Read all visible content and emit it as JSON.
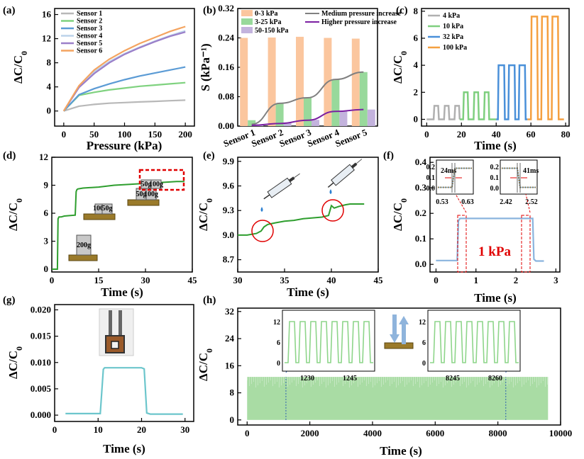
{
  "figure": {
    "panel_labels": [
      "(a)",
      "(b)",
      "(c)",
      "(d)",
      "(e)",
      "(f)",
      "(g)",
      "(h)"
    ]
  },
  "chart_data": [
    {
      "id": "a",
      "type": "line",
      "xlabel": "Pressure (kPa)",
      "ylabel": "ΔC/C0",
      "xlim": [
        -15,
        215
      ],
      "ylim": [
        -2.5,
        17
      ],
      "xticks": [
        0,
        50,
        100,
        150,
        200
      ],
      "yticks": [
        0,
        4,
        8,
        12,
        16
      ],
      "x": [
        0,
        25,
        50,
        75,
        100,
        125,
        150,
        175,
        200
      ],
      "series": [
        {
          "name": "Sensor 1",
          "color": "#b8b8b8",
          "values": [
            0,
            0.8,
            1.1,
            1.3,
            1.4,
            1.5,
            1.6,
            1.7,
            1.8
          ]
        },
        {
          "name": "Sensor 2",
          "color": "#7fd27f",
          "values": [
            0,
            2.6,
            3.1,
            3.5,
            3.8,
            4.1,
            4.3,
            4.5,
            4.7
          ]
        },
        {
          "name": "Sensor 3",
          "color": "#5b9bd5",
          "values": [
            0,
            2.7,
            3.7,
            4.5,
            5.2,
            5.8,
            6.3,
            6.8,
            7.3
          ]
        },
        {
          "name": "Sensor 4",
          "color": "#bcd3ea",
          "values": [
            0,
            4.0,
            6.5,
            8.2,
            9.5,
            10.6,
            11.6,
            12.5,
            13.3
          ]
        },
        {
          "name": "Sensor 5",
          "color": "#9b7fc9",
          "values": [
            0,
            3.9,
            6.2,
            8.0,
            9.4,
            10.5,
            11.5,
            12.4,
            13.1
          ]
        },
        {
          "name": "Sensor 6",
          "color": "#f4a460",
          "values": [
            0,
            4.2,
            6.8,
            8.6,
            10.0,
            11.2,
            12.2,
            13.2,
            14.0
          ]
        }
      ]
    },
    {
      "id": "b",
      "type": "bar",
      "ylabel": "S (kPa⁻¹)",
      "categories": [
        "Sensor 1",
        "Sensor 2",
        "Sensor 3",
        "Sensor 4",
        "Sensor 5"
      ],
      "ylim": [
        0,
        0.32
      ],
      "yticks": [
        "0.00",
        "0.08",
        "0.16",
        "0.24",
        "0.32"
      ],
      "series": [
        {
          "name": "0-3 kPa",
          "color": "#fbc69e",
          "values": [
            0.24,
            0.241,
            0.243,
            0.24,
            0.238
          ]
        },
        {
          "name": "3-25 kPa",
          "color": "#98d99b",
          "values": [
            0.016,
            0.062,
            0.077,
            0.127,
            0.147
          ]
        },
        {
          "name": "50-150 kPa",
          "color": "#c3b3dd",
          "values": [
            0.005,
            0.01,
            0.017,
            0.04,
            0.045
          ]
        }
      ],
      "lines": [
        {
          "name": "Medium pressure increase",
          "color": "#808080",
          "values": [
            0.005,
            0.062,
            0.077,
            0.127,
            0.147
          ]
        },
        {
          "name": "Higher pressure increase",
          "color": "#7b1fa2",
          "values": [
            0.002,
            0.007,
            0.016,
            0.04,
            0.045
          ]
        }
      ]
    },
    {
      "id": "c",
      "type": "line",
      "xlabel": "Time (s)",
      "ylabel": "ΔC/C0",
      "xlim": [
        -3,
        82
      ],
      "ylim": [
        -0.5,
        8.2
      ],
      "xticks": [
        0,
        20,
        40,
        60,
        80
      ],
      "yticks": [
        0,
        2,
        4,
        6,
        8
      ],
      "series": [
        {
          "name": "4 kPa",
          "color": "#b0b0b0",
          "level": 1.0,
          "start": 4,
          "period": 6,
          "on": 3,
          "cycles": 3
        },
        {
          "name": "10 kPa",
          "color": "#7fcf7f",
          "level": 2.0,
          "start": 21,
          "period": 6,
          "on": 3,
          "cycles": 3
        },
        {
          "name": "32 kPa",
          "color": "#4a90d9",
          "level": 4.0,
          "start": 41,
          "period": 6,
          "on": 4,
          "cycles": 3
        },
        {
          "name": "100 kPa",
          "color": "#f5a040",
          "level": 7.6,
          "start": 60,
          "period": 6,
          "on": 4,
          "cycles": 3
        }
      ]
    },
    {
      "id": "d",
      "type": "line",
      "xlabel": "Time (s)",
      "ylabel": "ΔC/C0",
      "xlim": [
        0,
        45
      ],
      "ylim": [
        -0.3,
        12
      ],
      "xticks": [
        0,
        15,
        30,
        45
      ],
      "yticks": [
        0,
        3,
        6,
        9,
        12
      ],
      "image_labels": [
        "100g",
        "50g",
        "50g",
        "100g",
        "50g",
        "100g",
        "100g",
        "200g"
      ],
      "series": [
        {
          "name": "",
          "color": "#2e9e2e",
          "x": [
            0,
            1.8,
            2.0,
            2.3,
            3.0,
            4.0,
            6.0,
            7.5,
            7.8,
            8.0,
            8.3,
            10,
            15,
            20,
            25,
            30,
            35,
            40,
            42.5
          ],
          "y": [
            0,
            0,
            5.4,
            5.6,
            5.6,
            5.7,
            5.75,
            5.8,
            8.3,
            8.5,
            8.6,
            8.7,
            8.8,
            9.0,
            9.1,
            9.2,
            9.3,
            9.4,
            9.4
          ]
        }
      ]
    },
    {
      "id": "e",
      "type": "line",
      "xlabel": "Time (s)",
      "ylabel": "ΔC/C0",
      "xlim": [
        30,
        45
      ],
      "ylim": [
        8.55,
        9.95
      ],
      "xticks": [
        30,
        35,
        40,
        45
      ],
      "yticks": [
        "8.7",
        "9.0",
        "9.3",
        "9.6",
        "9.9"
      ],
      "series": [
        {
          "name": "",
          "color": "#2e9e2e",
          "x": [
            30,
            31,
            32,
            32.5,
            32.8,
            33.2,
            34,
            35,
            36,
            37,
            38,
            39,
            39.7,
            40.0,
            40.3,
            40.8,
            41.5,
            42,
            43,
            43.5
          ],
          "y": [
            9.0,
            9.0,
            9.02,
            9.05,
            9.1,
            9.13,
            9.15,
            9.17,
            9.18,
            9.2,
            9.21,
            9.22,
            9.24,
            9.36,
            9.33,
            9.35,
            9.37,
            9.38,
            9.38,
            9.38
          ]
        }
      ]
    },
    {
      "id": "f",
      "type": "line",
      "xlabel": "Time (s)",
      "ylabel": "ΔC/C0",
      "annotation": "1 kPa",
      "xlim": [
        -0.15,
        3.1
      ],
      "ylim": [
        -0.03,
        0.42
      ],
      "xticks": [
        0,
        1,
        2,
        3
      ],
      "yticks": [
        "0.0",
        "0.1",
        "0.2",
        "0.3",
        "0.4"
      ],
      "series": [
        {
          "name": "",
          "color": "#8ab4de",
          "x": [
            0,
            0.53,
            0.56,
            0.6,
            1,
            1.5,
            2,
            2.42,
            2.45,
            2.5,
            2.7
          ],
          "y": [
            0.015,
            0.015,
            0.17,
            0.18,
            0.18,
            0.18,
            0.18,
            0.18,
            0.02,
            0.013,
            0.013
          ]
        }
      ],
      "insets": [
        {
          "label": "24ms",
          "xticks": [
            "0.53",
            "0.63"
          ],
          "yticks": [
            "0.0",
            "0.1",
            "0.2"
          ]
        },
        {
          "label": "41ms",
          "xticks": [
            "2.42",
            "2.52"
          ],
          "yticks": [
            "0.0",
            "0.1",
            "0.2"
          ]
        }
      ]
    },
    {
      "id": "g",
      "type": "line",
      "xlabel": "Time (s)",
      "ylabel": "ΔC/C0",
      "xlim": [
        0,
        32
      ],
      "ylim": [
        -0.0012,
        0.021
      ],
      "xticks": [
        0,
        10,
        20,
        30
      ],
      "yticks": [
        "0.000",
        "0.005",
        "0.010",
        "0.015",
        "0.020"
      ],
      "series": [
        {
          "name": "",
          "color": "#6cc6cc",
          "x": [
            2.5,
            10.5,
            11.2,
            11.5,
            15,
            20,
            20.6,
            21.2,
            22,
            29.5
          ],
          "y": [
            0.0003,
            0.0003,
            0.0087,
            0.009,
            0.009,
            0.009,
            0.0088,
            0.0004,
            0.0002,
            0.0002
          ]
        }
      ]
    },
    {
      "id": "h",
      "type": "area",
      "xlabel": "Time (s)",
      "ylabel": "ΔC/C0",
      "xlim": [
        -300,
        10000
      ],
      "ylim": [
        -1.5,
        33
      ],
      "xticks": [
        0,
        2000,
        4000,
        6000,
        8000,
        10000
      ],
      "yticks": [
        0,
        8,
        16,
        24,
        32
      ],
      "series": [
        {
          "name": "",
          "color": "#a9dca4",
          "x_range": [
            0,
            9600
          ],
          "peak": 12.7
        }
      ],
      "insets": [
        {
          "xticks": [
            "1230",
            "1245"
          ],
          "yticks": [
            "0",
            "6",
            "12"
          ]
        },
        {
          "xticks": [
            "8245",
            "8260"
          ],
          "yticks": [
            "0",
            "6",
            "12"
          ]
        }
      ]
    }
  ]
}
